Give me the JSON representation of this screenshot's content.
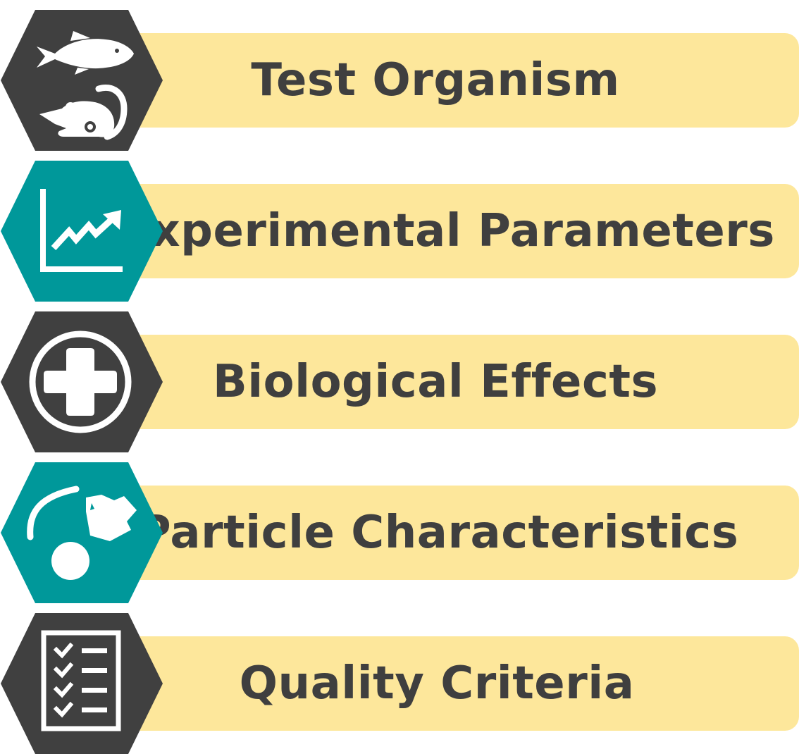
{
  "colors": {
    "dark_hex": "#404040",
    "teal_hex": "#00989a",
    "bar": "#fde79b",
    "text": "#3f3f3f",
    "icon": "#ffffff"
  },
  "items": [
    {
      "label": "Test Organism",
      "icon": "fish-and-mouse-icon",
      "hex_color": "dark"
    },
    {
      "label": "Experimental Parameters",
      "icon": "trend-chart-icon",
      "hex_color": "teal"
    },
    {
      "label": "Biological Effects",
      "icon": "medical-cross-icon",
      "hex_color": "dark"
    },
    {
      "label": "Particle Characteristics",
      "icon": "particle-shapes-icon",
      "hex_color": "teal"
    },
    {
      "label": "Quality Criteria",
      "icon": "checklist-icon",
      "hex_color": "dark"
    }
  ]
}
